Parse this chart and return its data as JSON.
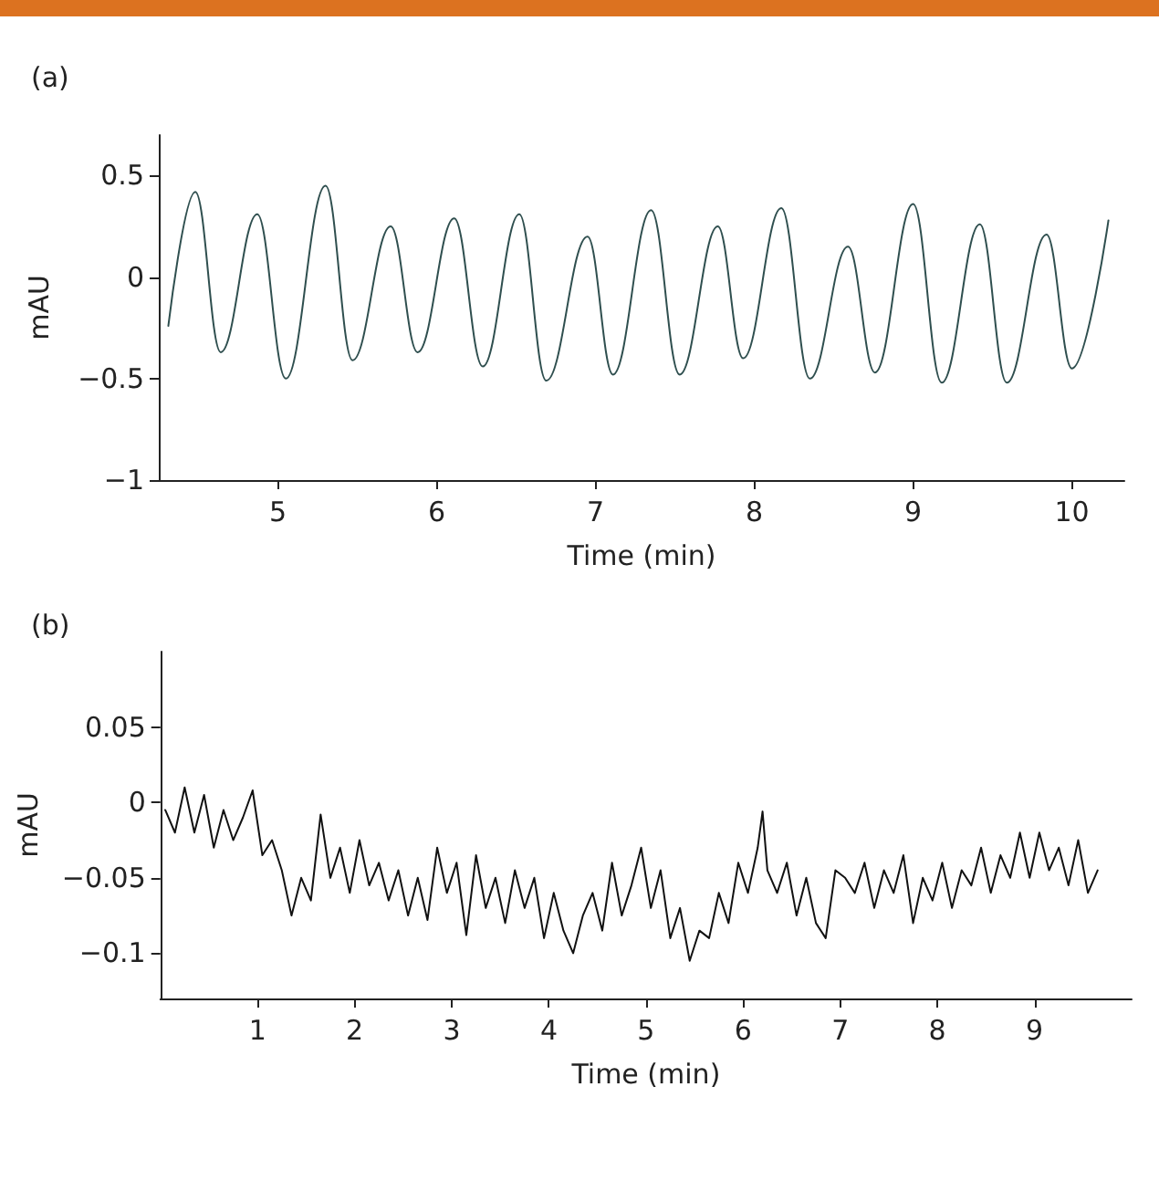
{
  "chart_data": [
    {
      "type": "line",
      "title": "(a)",
      "xlabel": "Time (min)",
      "ylabel": "mAU",
      "xlim": [
        4.25,
        10.33
      ],
      "xticks": [
        5,
        6,
        7,
        8,
        9,
        10
      ],
      "ylim": [
        -1,
        0.7
      ],
      "yticks": [
        0.5,
        0,
        {
          "value": -0.5,
          "label": "−0.5"
        },
        {
          "value": -1,
          "label": "−1"
        }
      ],
      "grid": false,
      "marker": "none",
      "line_style": "solid",
      "x": [
        4.31,
        4.48,
        4.64,
        4.87,
        5.05,
        5.3,
        5.47,
        5.71,
        5.88,
        6.11,
        6.29,
        6.52,
        6.69,
        6.95,
        7.11,
        7.35,
        7.53,
        7.77,
        7.93,
        8.17,
        8.35,
        8.59,
        8.76,
        9.0,
        9.18,
        9.42,
        9.59,
        9.84,
        10.0,
        10.23
      ],
      "series": [
        {
          "color": "#2f4f4f",
          "values": [
            -0.24,
            0.42,
            -0.37,
            0.31,
            -0.5,
            0.45,
            -0.41,
            0.25,
            -0.37,
            0.29,
            -0.44,
            0.31,
            -0.51,
            0.2,
            -0.48,
            0.33,
            -0.48,
            0.25,
            -0.4,
            0.34,
            -0.5,
            0.15,
            -0.47,
            0.36,
            -0.52,
            0.26,
            -0.52,
            0.21,
            -0.45,
            0.28
          ]
        }
      ]
    },
    {
      "type": "line",
      "title": "(b)",
      "xlabel": "Time (min)",
      "ylabel": "mAU",
      "xlim": [
        0,
        10
      ],
      "xticks": [
        1,
        2,
        3,
        4,
        5,
        6,
        7,
        8,
        9
      ],
      "ylim": [
        -0.13,
        0.1
      ],
      "yticks": [
        0.05,
        0,
        {
          "value": -0.05,
          "label": "−0.05"
        },
        {
          "value": -0.1,
          "label": "−0.1"
        }
      ],
      "grid": false,
      "marker": "none",
      "line_style": "solid",
      "x": [
        0.05,
        0.15,
        0.25,
        0.35,
        0.45,
        0.55,
        0.65,
        0.75,
        0.85,
        0.95,
        1.05,
        1.15,
        1.25,
        1.35,
        1.45,
        1.55,
        1.65,
        1.75,
        1.85,
        1.95,
        2.05,
        2.15,
        2.25,
        2.35,
        2.45,
        2.55,
        2.65,
        2.75,
        2.85,
        2.95,
        3.05,
        3.15,
        3.25,
        3.35,
        3.45,
        3.55,
        3.65,
        3.75,
        3.85,
        3.95,
        4.05,
        4.15,
        4.25,
        4.35,
        4.45,
        4.55,
        4.65,
        4.75,
        4.85,
        4.95,
        5.05,
        5.15,
        5.25,
        5.35,
        5.45,
        5.55,
        5.65,
        5.75,
        5.85,
        5.95,
        6.05,
        6.15,
        6.2,
        6.25,
        6.35,
        6.45,
        6.55,
        6.65,
        6.75,
        6.85,
        6.95,
        7.05,
        7.15,
        7.25,
        7.35,
        7.45,
        7.55,
        7.65,
        7.75,
        7.85,
        7.95,
        8.05,
        8.15,
        8.25,
        8.35,
        8.45,
        8.55,
        8.65,
        8.75,
        8.85,
        8.95,
        9.05,
        9.15,
        9.25,
        9.35,
        9.45,
        9.55,
        9.65
      ],
      "series": [
        {
          "color": "#111111",
          "values": [
            -0.005,
            -0.02,
            0.01,
            -0.02,
            0.005,
            -0.03,
            -0.005,
            -0.025,
            -0.01,
            0.008,
            -0.035,
            -0.025,
            -0.045,
            -0.075,
            -0.05,
            -0.065,
            -0.008,
            -0.05,
            -0.03,
            -0.06,
            -0.025,
            -0.055,
            -0.04,
            -0.065,
            -0.045,
            -0.075,
            -0.05,
            -0.078,
            -0.03,
            -0.06,
            -0.04,
            -0.088,
            -0.035,
            -0.07,
            -0.05,
            -0.08,
            -0.045,
            -0.07,
            -0.05,
            -0.09,
            -0.06,
            -0.085,
            -0.1,
            -0.075,
            -0.06,
            -0.085,
            -0.04,
            -0.075,
            -0.055,
            -0.03,
            -0.07,
            -0.045,
            -0.09,
            -0.07,
            -0.105,
            -0.085,
            -0.09,
            -0.06,
            -0.08,
            -0.04,
            -0.06,
            -0.03,
            -0.006,
            -0.045,
            -0.06,
            -0.04,
            -0.075,
            -0.05,
            -0.08,
            -0.09,
            -0.045,
            -0.05,
            -0.06,
            -0.04,
            -0.07,
            -0.045,
            -0.06,
            -0.035,
            -0.08,
            -0.05,
            -0.065,
            -0.04,
            -0.07,
            -0.045,
            -0.055,
            -0.03,
            -0.06,
            -0.035,
            -0.05,
            -0.02,
            -0.05,
            -0.02,
            -0.045,
            -0.03,
            -0.055,
            -0.025,
            -0.06,
            -0.045
          ]
        }
      ]
    }
  ]
}
